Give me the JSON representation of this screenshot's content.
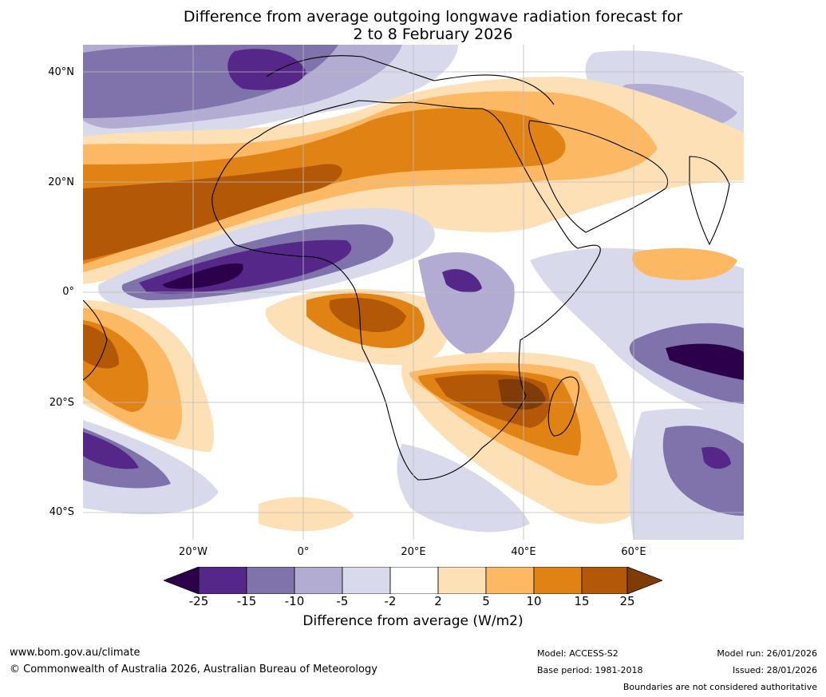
{
  "title": {
    "line1": "Difference from average outgoing longwave radiation forecast for",
    "line2": "2 to 8 February 2026"
  },
  "map": {
    "lat_labels": [
      "40°N",
      "20°N",
      "0°",
      "20°S",
      "40°S"
    ],
    "lon_labels": [
      "20°W",
      "0°",
      "20°E",
      "40°E",
      "60°E"
    ],
    "extent": {
      "lon_min": -40,
      "lon_max": 80,
      "lat_min": -45,
      "lat_max": 45
    },
    "ocean_color": "#ffffff",
    "grid_color": "#bdbdbd"
  },
  "colorbar": {
    "label": "Difference from average (W/m2)",
    "ticks": [
      "-25",
      "-15",
      "-10",
      "-5",
      "-2",
      "2",
      "5",
      "10",
      "15",
      "25"
    ],
    "colors": [
      "#2d004b",
      "#542788",
      "#8073ac",
      "#b2abd2",
      "#d8daeb",
      "#ffffff",
      "#fee0b6",
      "#fdb863",
      "#e08214",
      "#b35806",
      "#7f3b08"
    ]
  },
  "footer": {
    "website": "www.bom.gov.au/climate",
    "copyright": "© Commonwealth of Australia 2026, Australian Bureau of Meteorology",
    "model": "Model: ACCESS-S2",
    "base_period": "Base period: 1981-2018",
    "model_run": "Model run: 26/01/2026",
    "issued": "Issued: 28/01/2026",
    "boundaries": "Boundaries are not considered authoritative"
  }
}
